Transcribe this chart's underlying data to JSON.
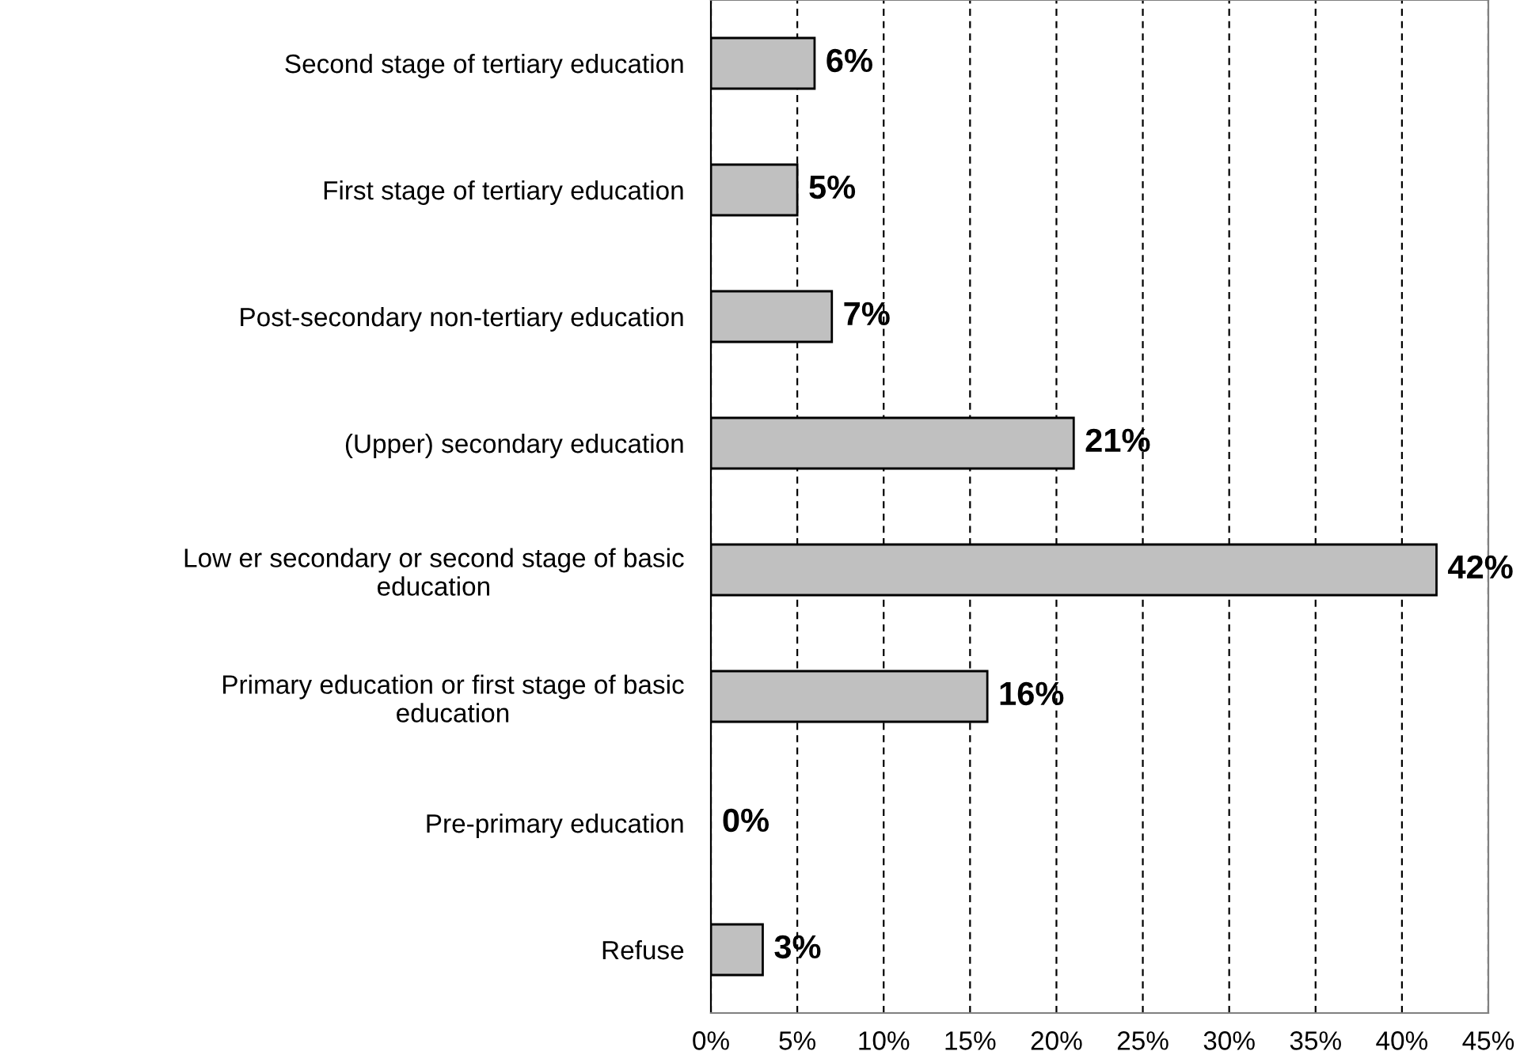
{
  "chart_data": {
    "type": "bar",
    "orientation": "horizontal",
    "categories": [
      "Second stage of tertiary education",
      "First stage of tertiary education",
      "Post-secondary non-tertiary education",
      "(Upper) secondary education",
      "Low er secondary or second stage of basic\neducation",
      "Primary education or first stage of basic\neducation",
      "Pre-primary education",
      "Refuse"
    ],
    "values": [
      6,
      5,
      7,
      21,
      42,
      16,
      0,
      3
    ],
    "value_labels": [
      "6%",
      "5%",
      "7%",
      "21%",
      "42%",
      "16%",
      "0%",
      "3%"
    ],
    "color": "#c0c0c0",
    "xlim": [
      0,
      45
    ],
    "xticks": [
      {
        "value": 0,
        "label": "0%"
      },
      {
        "value": 5,
        "label": "5%"
      },
      {
        "value": 10,
        "label": "10%"
      },
      {
        "value": 15,
        "label": "15%"
      },
      {
        "value": 20,
        "label": "20%"
      },
      {
        "value": 25,
        "label": "25%"
      },
      {
        "value": 30,
        "label": "30%"
      },
      {
        "value": 35,
        "label": "35%"
      },
      {
        "value": 40,
        "label": "40%"
      },
      {
        "value": 45,
        "label": "45%"
      }
    ],
    "grid": "x"
  }
}
